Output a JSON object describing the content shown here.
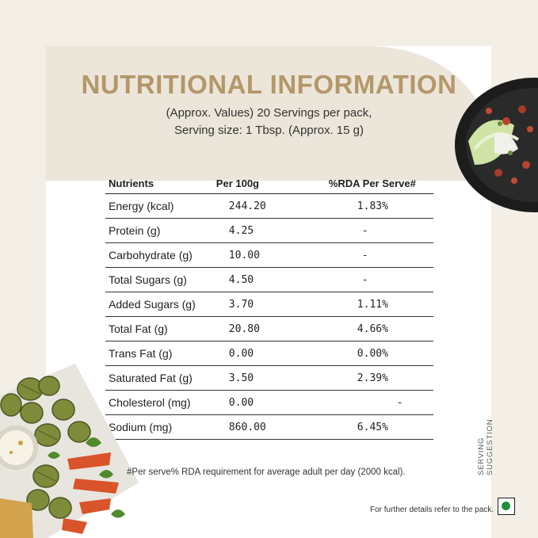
{
  "heading": {
    "title": "NUTRITIONAL INFORMATION",
    "subtitle_line1": "(Approx. Values)  20 Servings per pack,",
    "subtitle_line2": "Serving size: 1 Tbsp. (Approx. 15 g)"
  },
  "table": {
    "headers": [
      "Nutrients",
      "Per 100g",
      "%RDA Per Serve#"
    ],
    "rows": [
      {
        "nutrient": "Energy (kcal)",
        "per100g": "244.20",
        "rda": "1.83%"
      },
      {
        "nutrient": "Protein (g)",
        "per100g": "4.25",
        "rda": "-"
      },
      {
        "nutrient": "Carbohydrate (g)",
        "per100g": "10.00",
        "rda": "-"
      },
      {
        "nutrient": "Total Sugars (g)",
        "per100g": "4.50",
        "rda": "-"
      },
      {
        "nutrient": "Added Sugars (g)",
        "per100g": "3.70",
        "rda": "1.11%"
      },
      {
        "nutrient": "Total Fat (g)",
        "per100g": "20.80",
        "rda": "4.66%"
      },
      {
        "nutrient": "Trans Fat (g)",
        "per100g": "0.00",
        "rda": "0.00%"
      },
      {
        "nutrient": "Saturated Fat (g)",
        "per100g": "3.50",
        "rda": "2.39%"
      },
      {
        "nutrient": "Cholesterol (mg)",
        "per100g": "0.00",
        "rda": "-"
      },
      {
        "nutrient": "Sodium (mg)",
        "per100g": "860.00",
        "rda": "6.45%"
      }
    ]
  },
  "footnote": "#Per serve% RDA requirement for average adult per day (2000 kcal).",
  "side_label": "SERVING SUGGESTION",
  "refer_note": "For further details refer to the pack.",
  "colors": {
    "title": "#b4976a",
    "header_band": "#ece6da",
    "background": "#f3efe6",
    "veg_dot": "#1e8f3a"
  },
  "icons": [
    "salad-plate-image",
    "grilled-vegetables-image",
    "veg-mark-icon"
  ]
}
